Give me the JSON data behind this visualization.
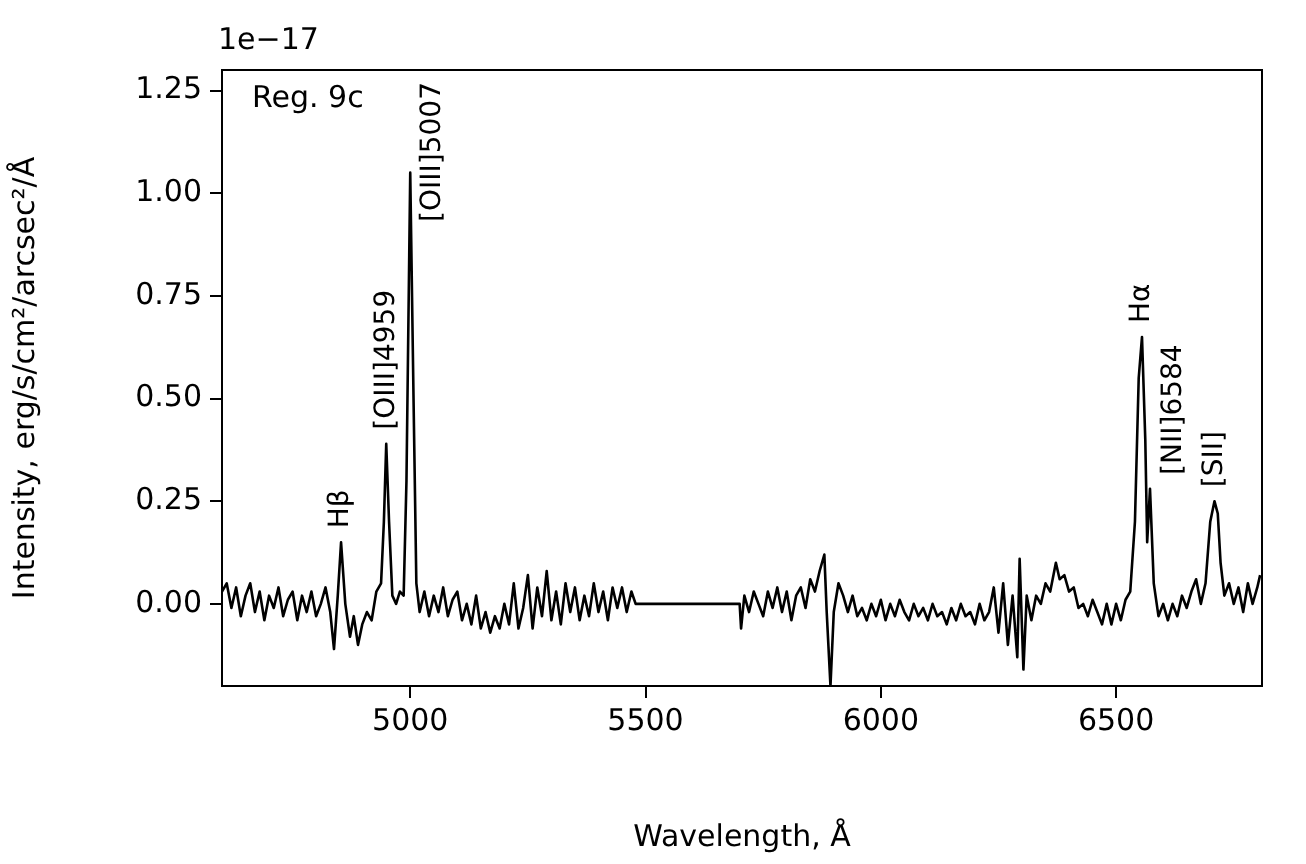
{
  "chart_data": {
    "type": "line",
    "xlabel": "Wavelength, Å",
    "ylabel": "Intensity, erg/s/cm²/arcsec²/Å",
    "xlim": [
      4600,
      6810
    ],
    "ylim": [
      -0.2,
      1.3
    ],
    "xticks": [
      5000,
      5500,
      6000,
      6500
    ],
    "yticks": [
      {
        "value": 0,
        "label": "0.00"
      },
      {
        "value": 0.25,
        "label": "0.25"
      },
      {
        "value": 0.5,
        "label": "0.50"
      },
      {
        "value": 0.75,
        "label": "0.75"
      },
      {
        "value": 1,
        "label": "1.00"
      },
      {
        "value": 1.25,
        "label": "1.25"
      }
    ],
    "grid": false,
    "legend": false,
    "marker": "none",
    "line_style": "solid",
    "series": [
      {
        "color": "#000000",
        "x": [
          4600,
          4610,
          4620,
          4630,
          4640,
          4650,
          4660,
          4670,
          4680,
          4690,
          4700,
          4710,
          4720,
          4730,
          4740,
          4750,
          4760,
          4770,
          4780,
          4790,
          4800,
          4810,
          4820,
          4830,
          4838,
          4846,
          4853,
          4862,
          4872,
          4880,
          4889,
          4898,
          4908,
          4918,
          4928,
          4938,
          4944,
          4949,
          4955,
          4962,
          4970,
          4978,
          4986,
          4992,
          5000,
          5007,
          5013,
          5020,
          5030,
          5040,
          5050,
          5060,
          5070,
          5080,
          5090,
          5100,
          5110,
          5120,
          5130,
          5140,
          5150,
          5160,
          5170,
          5180,
          5190,
          5200,
          5210,
          5220,
          5230,
          5240,
          5250,
          5260,
          5270,
          5280,
          5290,
          5300,
          5310,
          5320,
          5330,
          5340,
          5350,
          5360,
          5370,
          5380,
          5390,
          5400,
          5410,
          5420,
          5430,
          5440,
          5450,
          5460,
          5470,
          5479,
          5700,
          5703,
          5710,
          5720,
          5730,
          5740,
          5750,
          5760,
          5770,
          5780,
          5790,
          5800,
          5810,
          5820,
          5830,
          5840,
          5850,
          5860,
          5870,
          5880,
          5885,
          5893,
          5900,
          5910,
          5920,
          5930,
          5940,
          5950,
          5960,
          5970,
          5980,
          5990,
          6000,
          6010,
          6020,
          6030,
          6040,
          6050,
          6060,
          6070,
          6080,
          6090,
          6100,
          6110,
          6120,
          6130,
          6140,
          6150,
          6160,
          6170,
          6180,
          6190,
          6200,
          6210,
          6220,
          6230,
          6240,
          6250,
          6260,
          6270,
          6280,
          6290,
          6295,
          6303,
          6310,
          6320,
          6330,
          6340,
          6350,
          6360,
          6372,
          6380,
          6390,
          6400,
          6410,
          6420,
          6430,
          6440,
          6450,
          6460,
          6470,
          6480,
          6490,
          6500,
          6510,
          6520,
          6530,
          6540,
          6548,
          6555,
          6562,
          6566,
          6572,
          6580,
          6590,
          6600,
          6610,
          6620,
          6630,
          6640,
          6650,
          6660,
          6670,
          6680,
          6690,
          6700,
          6709,
          6716,
          6722,
          6730,
          6740,
          6750,
          6760,
          6770,
          6780,
          6790,
          6800,
          6806
        ],
        "values": [
          0.03,
          0.05,
          -0.01,
          0.04,
          -0.03,
          0.02,
          0.05,
          -0.02,
          0.03,
          -0.04,
          0.02,
          -0.01,
          0.04,
          -0.03,
          0.01,
          0.03,
          -0.04,
          0.02,
          -0.02,
          0.03,
          -0.03,
          0,
          0.04,
          -0.02,
          -0.11,
          0.02,
          0.15,
          0,
          -0.08,
          -0.03,
          -0.1,
          -0.05,
          -0.02,
          -0.04,
          0.03,
          0.05,
          0.2,
          0.39,
          0.2,
          0.02,
          0,
          0.03,
          0.02,
          0.3,
          1.05,
          0.5,
          0.05,
          -0.02,
          0.03,
          -0.03,
          0.02,
          -0.02,
          0.04,
          -0.03,
          0.01,
          0.03,
          -0.04,
          0,
          -0.05,
          0.02,
          -0.06,
          -0.02,
          -0.07,
          -0.03,
          -0.06,
          0,
          -0.05,
          0.05,
          -0.06,
          -0.01,
          0.07,
          -0.06,
          0.04,
          -0.03,
          0.08,
          -0.04,
          0.03,
          -0.05,
          0.05,
          -0.02,
          0.04,
          -0.04,
          0.02,
          -0.03,
          0.05,
          -0.02,
          0.03,
          -0.04,
          0.04,
          -0.01,
          0.04,
          -0.02,
          0.03,
          0,
          0,
          -0.06,
          0.02,
          -0.02,
          0.03,
          0,
          -0.03,
          0.03,
          -0.01,
          0.04,
          -0.02,
          0.03,
          -0.04,
          0.02,
          0.04,
          -0.01,
          0.06,
          0.03,
          0.08,
          0.12,
          -0.02,
          -0.2,
          -0.02,
          0.05,
          0.02,
          -0.02,
          0.02,
          -0.03,
          -0.01,
          -0.04,
          0,
          -0.03,
          0.01,
          -0.04,
          0,
          -0.03,
          0.01,
          -0.02,
          -0.04,
          0,
          -0.03,
          -0.01,
          -0.04,
          0,
          -0.03,
          -0.02,
          -0.05,
          -0.01,
          -0.04,
          0,
          -0.03,
          -0.02,
          -0.05,
          0,
          -0.04,
          -0.02,
          0.04,
          -0.07,
          0.05,
          -0.1,
          0.02,
          -0.13,
          0.11,
          -0.16,
          0.02,
          -0.04,
          0.02,
          0,
          0.05,
          0.03,
          0.1,
          0.06,
          0.07,
          0.03,
          0.04,
          -0.01,
          0,
          -0.03,
          0.01,
          -0.02,
          -0.05,
          0,
          -0.05,
          0,
          -0.04,
          0.01,
          0.03,
          0.2,
          0.55,
          0.65,
          0.4,
          0.15,
          0.28,
          0.05,
          -0.03,
          0,
          -0.04,
          0,
          -0.03,
          0.02,
          -0.01,
          0.03,
          0.06,
          0,
          0.05,
          0.2,
          0.25,
          0.22,
          0.1,
          0.02,
          0.05,
          0,
          0.04,
          -0.02,
          0.05,
          0,
          0.04,
          0.07
        ]
      }
    ],
    "annotations": [
      "Reg. 9c",
      "1e−17",
      {
        "text": "Hβ",
        "x": 4853,
        "y": 0.15
      },
      {
        "text": "[OIII]4959",
        "x": 4949,
        "y": 0.39
      },
      {
        "text": "[OIII]5007",
        "x": 5000,
        "y": 1.05
      },
      {
        "text": "Hα",
        "x": 6555,
        "y": 0.65
      },
      {
        "text": "[NII]6584",
        "x": 6572,
        "y": 0.28
      },
      {
        "text": "[SII]",
        "x": 6709,
        "y": 0.25
      }
    ]
  }
}
